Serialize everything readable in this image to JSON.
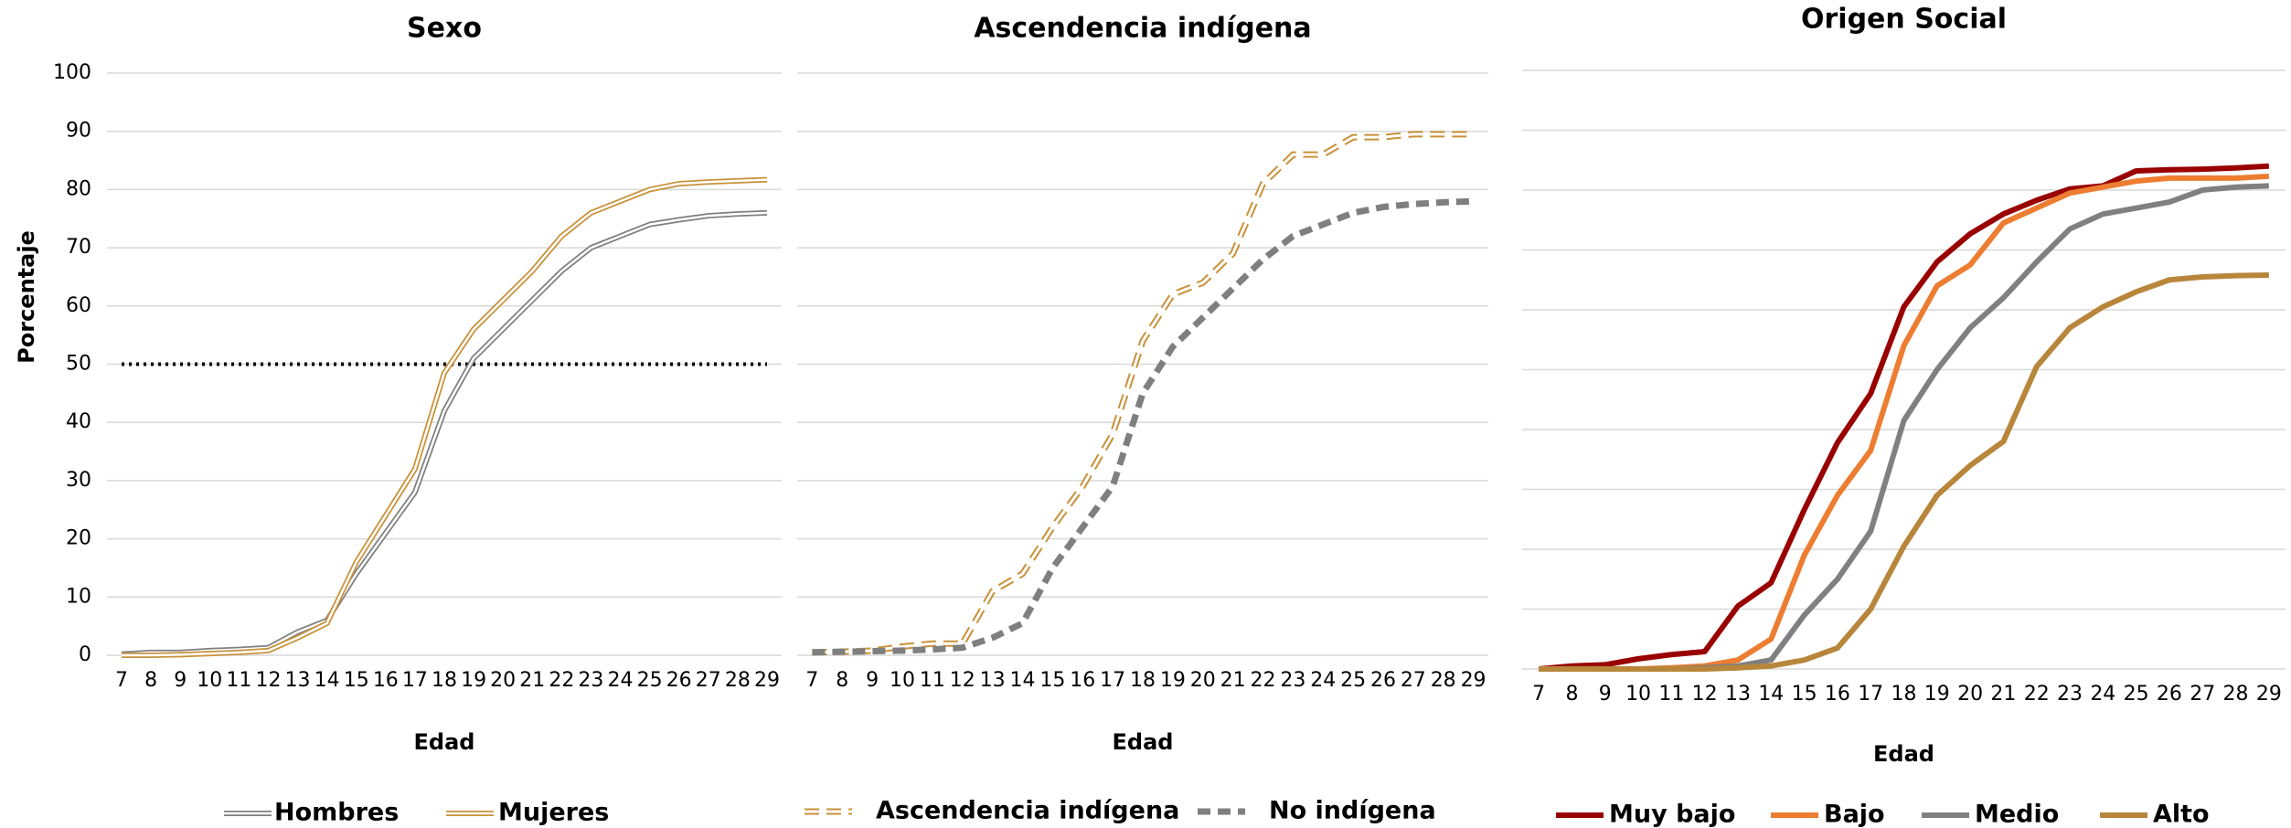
{
  "chart_data": [
    {
      "type": "line",
      "title": "Sexo",
      "x_label": "Edad",
      "y_label": "Porcentaje",
      "x": [
        7,
        8,
        9,
        10,
        11,
        12,
        13,
        14,
        15,
        16,
        17,
        18,
        19,
        20,
        21,
        22,
        23,
        24,
        25,
        26,
        27,
        28,
        29
      ],
      "xlim": [
        6.5,
        29.5
      ],
      "ylim": [
        0,
        100
      ],
      "yticks": [
        0,
        10,
        20,
        30,
        40,
        50,
        60,
        70,
        80,
        90,
        100
      ],
      "show_ytick_labels": true,
      "grid": true,
      "reference_line": 50,
      "series": [
        {
          "name": "Hombres",
          "color": "#7f7f7f",
          "style": "double",
          "values": [
            0.2,
            0.5,
            0.5,
            0.8,
            1,
            1.3,
            4,
            6,
            14,
            21,
            28,
            42,
            51,
            56,
            61,
            66,
            70,
            72,
            74,
            74.8,
            75.5,
            75.8,
            76
          ]
        },
        {
          "name": "Mujeres",
          "color": "#c8913a",
          "style": "double",
          "values": [
            0,
            0,
            0.1,
            0.3,
            0.5,
            0.8,
            3,
            5.5,
            16,
            24,
            32,
            48.5,
            56,
            61,
            66,
            72,
            76,
            78,
            80,
            81,
            81.3,
            81.5,
            81.7
          ]
        }
      ]
    },
    {
      "type": "line",
      "title": "Ascendencia indígena",
      "x_label": "Edad",
      "x": [
        7,
        8,
        9,
        10,
        11,
        12,
        13,
        14,
        15,
        16,
        17,
        18,
        19,
        20,
        21,
        22,
        23,
        24,
        25,
        26,
        27,
        28,
        29
      ],
      "xlim": [
        6.5,
        29.5
      ],
      "ylim": [
        0,
        100
      ],
      "yticks": [
        0,
        10,
        20,
        30,
        40,
        50,
        60,
        70,
        80,
        90,
        100
      ],
      "show_ytick_labels": false,
      "grid": true,
      "series": [
        {
          "name": "Ascendencia indígena",
          "color": "#c8913a",
          "style": "dashed-hollow",
          "values": [
            0.5,
            0.6,
            0.8,
            1.5,
            2,
            2,
            11,
            14,
            22,
            29,
            38,
            54,
            62,
            64,
            69,
            81,
            86,
            86,
            89,
            89,
            89.5,
            89.5,
            89.5
          ]
        },
        {
          "name": "No indígena",
          "color": "#7f7f7f",
          "style": "dashed",
          "values": [
            0.5,
            0.6,
            0.7,
            0.8,
            1,
            1.3,
            3,
            5.5,
            15,
            22,
            29,
            45,
            53,
            58,
            63,
            68,
            72,
            74,
            76,
            77,
            77.5,
            77.8,
            78
          ]
        }
      ]
    },
    {
      "type": "line",
      "title": "Origen Social",
      "x_label": "Edad",
      "x": [
        7,
        8,
        9,
        10,
        11,
        12,
        13,
        14,
        15,
        16,
        17,
        18,
        19,
        20,
        21,
        22,
        23,
        24,
        25,
        26,
        27,
        28,
        29
      ],
      "xlim": [
        6.5,
        29.5
      ],
      "ylim": [
        0,
        100
      ],
      "yticks": [
        0,
        10,
        20,
        30,
        40,
        50,
        60,
        70,
        80,
        90,
        100
      ],
      "show_ytick_labels": false,
      "grid": true,
      "series": [
        {
          "name": "Muy bajo",
          "color": "#990000",
          "style": "solid",
          "values": [
            0,
            0.5,
            0.7,
            1.7,
            2.4,
            2.9,
            10.5,
            14.4,
            26.6,
            37.8,
            46,
            60.5,
            68,
            72.7,
            76,
            78.3,
            80.2,
            80.7,
            83.2,
            83.4,
            83.5,
            83.7,
            84
          ]
        },
        {
          "name": "Bajo",
          "color": "#ed7d31",
          "style": "solid",
          "values": [
            0,
            0,
            0,
            0,
            0.2,
            0.5,
            1.5,
            5,
            19,
            29,
            36.5,
            54,
            64,
            67.5,
            74.5,
            77,
            79.5,
            80.5,
            81.5,
            82,
            82,
            82,
            82.3
          ]
        },
        {
          "name": "Medio",
          "color": "#808080",
          "style": "solid",
          "values": [
            0,
            0,
            0,
            0,
            0,
            0.2,
            0.5,
            1.5,
            9,
            15,
            23,
            41.5,
            50,
            57,
            62,
            68,
            73.5,
            76,
            77,
            78,
            80,
            80.5,
            80.7
          ]
        },
        {
          "name": "Alto",
          "color": "#b8863b",
          "style": "solid",
          "values": [
            0,
            0,
            0,
            0,
            0,
            0,
            0.2,
            0.5,
            1.5,
            3.5,
            10,
            20.5,
            29,
            34,
            38,
            50.5,
            57,
            60.5,
            63,
            65,
            65.5,
            65.7,
            65.8
          ]
        }
      ]
    }
  ]
}
